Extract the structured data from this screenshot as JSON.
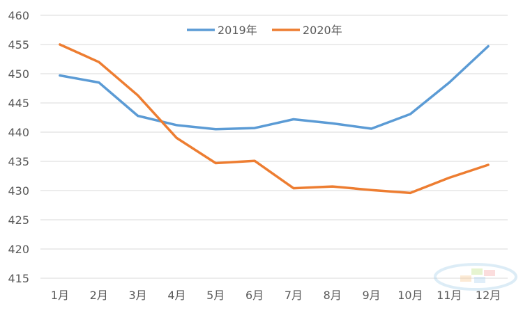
{
  "chart_data": {
    "type": "line",
    "categories": [
      "1月",
      "2月",
      "3月",
      "4月",
      "5月",
      "6月",
      "7月",
      "8月",
      "9月",
      "10月",
      "11月",
      "12月"
    ],
    "series": [
      {
        "name": "2019年",
        "color": "#5b9bd5",
        "values": [
          449.7,
          448.5,
          442.8,
          441.2,
          440.5,
          440.7,
          442.2,
          441.5,
          440.6,
          443.1,
          448.5,
          454.7
        ]
      },
      {
        "name": "2020年",
        "color": "#ed7d31",
        "values": [
          455.0,
          452.0,
          446.3,
          439.0,
          434.7,
          435.1,
          430.4,
          430.7,
          430.1,
          429.6,
          432.2,
          434.4
        ]
      }
    ],
    "ylim": [
      415,
      460
    ],
    "yticks": [
      415,
      420,
      425,
      430,
      435,
      440,
      445,
      450,
      455,
      460
    ],
    "title": "",
    "xlabel": "",
    "ylabel": "",
    "grid": true,
    "legend_position": "top-center"
  }
}
